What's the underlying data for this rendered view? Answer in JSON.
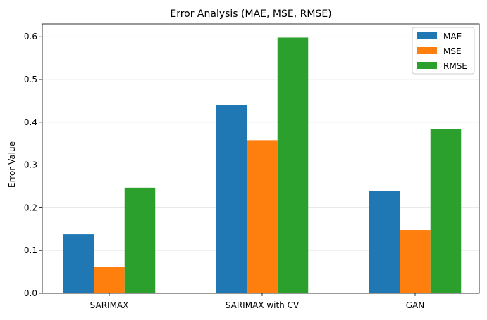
{
  "chart_data": {
    "type": "bar",
    "title": "Error Analysis (MAE, MSE, RMSE)",
    "xlabel": "",
    "ylabel": "Error Value",
    "categories": [
      "SARIMAX",
      "SARIMAX with CV",
      "GAN"
    ],
    "series": [
      {
        "name": "MAE",
        "color": "#1f77b4",
        "values": [
          0.138,
          0.44,
          0.24
        ]
      },
      {
        "name": "MSE",
        "color": "#ff7f0e",
        "values": [
          0.061,
          0.358,
          0.148
        ]
      },
      {
        "name": "RMSE",
        "color": "#2ca02c",
        "values": [
          0.247,
          0.598,
          0.384
        ]
      }
    ],
    "ylim": [
      0,
      0.63
    ],
    "yticks": [
      "0.0",
      "0.1",
      "0.2",
      "0.3",
      "0.4",
      "0.5",
      "0.6"
    ],
    "grid": "y-axis, light",
    "legend_position": "top-right"
  }
}
